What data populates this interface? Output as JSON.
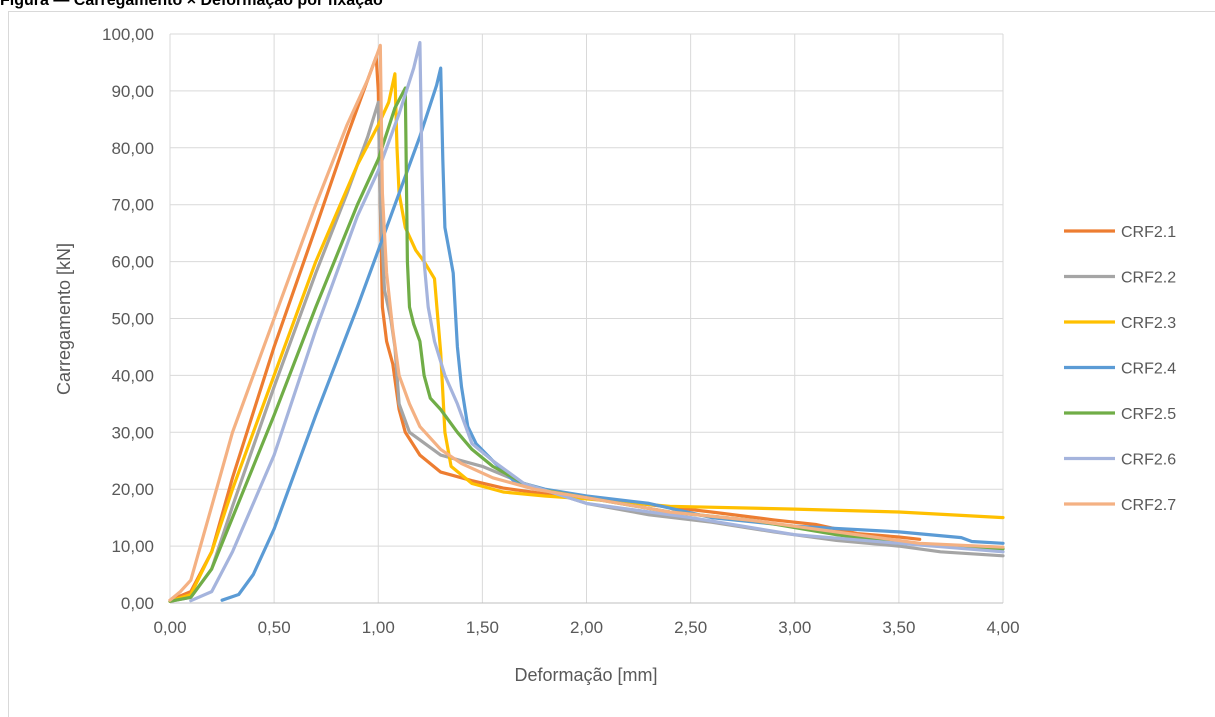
{
  "caption": "Figura — Carregamento × Deformação por fixação",
  "chart_data": {
    "type": "line",
    "title": "",
    "xlabel": "Deformação [mm]",
    "ylabel": "Carregamento [kN]",
    "xlim": [
      0,
      4
    ],
    "ylim": [
      0,
      100
    ],
    "x_ticks": [
      "0,00",
      "0,50",
      "1,00",
      "1,50",
      "2,00",
      "2,50",
      "3,00",
      "3,50",
      "4,00"
    ],
    "y_ticks": [
      "0,00",
      "10,00",
      "20,00",
      "30,00",
      "40,00",
      "50,00",
      "60,00",
      "70,00",
      "80,00",
      "90,00",
      "100,00"
    ],
    "grid": true,
    "legend_position": "right",
    "series": [
      {
        "name": "CRF2.1",
        "color": "#ED7D31",
        "points": [
          [
            0,
            0.5
          ],
          [
            0.1,
            2
          ],
          [
            0.2,
            9
          ],
          [
            0.3,
            22
          ],
          [
            0.5,
            45
          ],
          [
            0.7,
            66
          ],
          [
            0.85,
            82
          ],
          [
            0.95,
            92
          ],
          [
            0.99,
            96
          ],
          [
            1.0,
            90
          ],
          [
            1.01,
            70
          ],
          [
            1.02,
            52
          ],
          [
            1.04,
            46
          ],
          [
            1.07,
            42
          ],
          [
            1.1,
            34
          ],
          [
            1.13,
            30
          ],
          [
            1.2,
            26
          ],
          [
            1.3,
            23
          ],
          [
            1.45,
            21.5
          ],
          [
            1.6,
            20.2
          ],
          [
            1.8,
            19.2
          ],
          [
            2.0,
            18.5
          ],
          [
            2.3,
            17.3
          ],
          [
            2.6,
            16
          ],
          [
            2.9,
            14.6
          ],
          [
            3.1,
            13.8
          ],
          [
            3.3,
            12.2
          ],
          [
            3.5,
            11.6
          ],
          [
            3.6,
            11.2
          ]
        ]
      },
      {
        "name": "CRF2.2",
        "color": "#A5A5A5",
        "points": [
          [
            0,
            0.3
          ],
          [
            0.1,
            1
          ],
          [
            0.2,
            6
          ],
          [
            0.3,
            17
          ],
          [
            0.5,
            38
          ],
          [
            0.7,
            58
          ],
          [
            0.85,
            72
          ],
          [
            0.95,
            82
          ],
          [
            1.0,
            88
          ],
          [
            1.01,
            70
          ],
          [
            1.03,
            55
          ],
          [
            1.06,
            50
          ],
          [
            1.08,
            45
          ],
          [
            1.1,
            35
          ],
          [
            1.15,
            30
          ],
          [
            1.3,
            26
          ],
          [
            1.5,
            24
          ],
          [
            1.7,
            21
          ],
          [
            2.0,
            17.5
          ],
          [
            2.3,
            15.5
          ],
          [
            2.6,
            14.2
          ],
          [
            2.9,
            12.5
          ],
          [
            3.2,
            11
          ],
          [
            3.5,
            10
          ],
          [
            3.7,
            9
          ],
          [
            4.0,
            8.3
          ]
        ]
      },
      {
        "name": "CRF2.3",
        "color": "#FFC000",
        "points": [
          [
            0,
            0.3
          ],
          [
            0.1,
            1.5
          ],
          [
            0.2,
            9
          ],
          [
            0.3,
            20
          ],
          [
            0.5,
            40
          ],
          [
            0.7,
            60
          ],
          [
            0.9,
            77
          ],
          [
            1.0,
            84
          ],
          [
            1.05,
            88
          ],
          [
            1.08,
            93
          ],
          [
            1.09,
            80
          ],
          [
            1.1,
            72
          ],
          [
            1.13,
            66
          ],
          [
            1.18,
            62
          ],
          [
            1.22,
            60
          ],
          [
            1.27,
            57
          ],
          [
            1.3,
            44
          ],
          [
            1.32,
            30
          ],
          [
            1.35,
            24
          ],
          [
            1.45,
            21
          ],
          [
            1.6,
            19.5
          ],
          [
            1.8,
            18.8
          ],
          [
            2.0,
            18.3
          ],
          [
            2.4,
            17
          ],
          [
            3.0,
            16.5
          ],
          [
            3.5,
            16
          ],
          [
            4.0,
            15
          ]
        ]
      },
      {
        "name": "CRF2.4",
        "color": "#5B9BD5",
        "points": [
          [
            0.25,
            0.5
          ],
          [
            0.33,
            1.5
          ],
          [
            0.4,
            5
          ],
          [
            0.5,
            13
          ],
          [
            0.7,
            33
          ],
          [
            0.9,
            52
          ],
          [
            1.0,
            62
          ],
          [
            1.1,
            72
          ],
          [
            1.2,
            82
          ],
          [
            1.28,
            91
          ],
          [
            1.3,
            94
          ],
          [
            1.31,
            78
          ],
          [
            1.32,
            66
          ],
          [
            1.34,
            62
          ],
          [
            1.36,
            58
          ],
          [
            1.38,
            45
          ],
          [
            1.4,
            38
          ],
          [
            1.43,
            31
          ],
          [
            1.47,
            28
          ],
          [
            1.55,
            25
          ],
          [
            1.65,
            21.5
          ],
          [
            1.8,
            20
          ],
          [
            2.0,
            18.8
          ],
          [
            2.3,
            17.5
          ],
          [
            2.6,
            15
          ],
          [
            3.0,
            13.5
          ],
          [
            3.5,
            12.5
          ],
          [
            3.8,
            11.5
          ],
          [
            3.85,
            10.8
          ],
          [
            4.0,
            10.5
          ]
        ]
      },
      {
        "name": "CRF2.5",
        "color": "#70AD47",
        "points": [
          [
            0,
            0.3
          ],
          [
            0.1,
            1
          ],
          [
            0.2,
            6
          ],
          [
            0.3,
            15
          ],
          [
            0.5,
            33
          ],
          [
            0.7,
            52
          ],
          [
            0.9,
            70
          ],
          [
            1.0,
            78
          ],
          [
            1.08,
            87
          ],
          [
            1.13,
            90.5
          ],
          [
            1.14,
            60
          ],
          [
            1.15,
            52
          ],
          [
            1.17,
            49
          ],
          [
            1.2,
            46
          ],
          [
            1.22,
            40
          ],
          [
            1.25,
            36
          ],
          [
            1.3,
            34
          ],
          [
            1.38,
            30
          ],
          [
            1.45,
            27
          ],
          [
            1.55,
            24
          ],
          [
            1.7,
            21
          ],
          [
            1.8,
            19.8
          ],
          [
            2.0,
            18.5
          ],
          [
            2.4,
            16
          ],
          [
            2.8,
            14.5
          ],
          [
            3.2,
            12
          ],
          [
            3.5,
            10.5
          ],
          [
            4.0,
            9.5
          ]
        ]
      },
      {
        "name": "CRF2.6",
        "color": "#A5B4DD",
        "points": [
          [
            0.1,
            0.4
          ],
          [
            0.2,
            2
          ],
          [
            0.3,
            9
          ],
          [
            0.5,
            26
          ],
          [
            0.7,
            48
          ],
          [
            0.9,
            68
          ],
          [
            1.0,
            76
          ],
          [
            1.1,
            86
          ],
          [
            1.17,
            94
          ],
          [
            1.2,
            98.5
          ],
          [
            1.21,
            76
          ],
          [
            1.22,
            60
          ],
          [
            1.24,
            52
          ],
          [
            1.27,
            46
          ],
          [
            1.32,
            40
          ],
          [
            1.38,
            35
          ],
          [
            1.45,
            28
          ],
          [
            1.55,
            25
          ],
          [
            1.7,
            21
          ],
          [
            2.0,
            17.5
          ],
          [
            2.5,
            15
          ],
          [
            3.0,
            12
          ],
          [
            3.5,
            10.5
          ],
          [
            4.0,
            9
          ]
        ]
      },
      {
        "name": "CRF2.7",
        "color": "#F4B183",
        "points": [
          [
            0,
            0.5
          ],
          [
            0.05,
            2
          ],
          [
            0.1,
            4
          ],
          [
            0.2,
            17
          ],
          [
            0.3,
            30
          ],
          [
            0.5,
            50
          ],
          [
            0.7,
            70
          ],
          [
            0.85,
            84
          ],
          [
            0.95,
            92
          ],
          [
            1.0,
            97
          ],
          [
            1.01,
            98
          ],
          [
            1.02,
            72
          ],
          [
            1.04,
            58
          ],
          [
            1.07,
            48
          ],
          [
            1.1,
            40
          ],
          [
            1.15,
            35
          ],
          [
            1.2,
            31
          ],
          [
            1.3,
            27
          ],
          [
            1.4,
            24.5
          ],
          [
            1.55,
            22
          ],
          [
            1.75,
            20
          ],
          [
            2.0,
            18.5
          ],
          [
            2.4,
            16
          ],
          [
            2.8,
            14.5
          ],
          [
            3.2,
            12.5
          ],
          [
            3.6,
            10.5
          ],
          [
            4.0,
            9.8
          ]
        ]
      }
    ]
  }
}
